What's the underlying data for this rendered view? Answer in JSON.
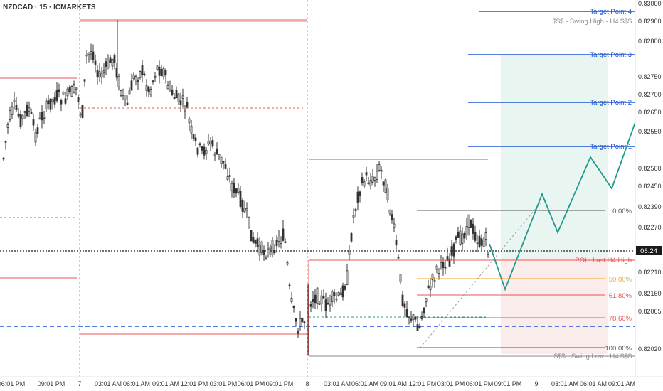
{
  "header": {
    "symbol_label": "NZDCAD · 15 · ICMARKETS"
  },
  "colors": {
    "up": "#22252b",
    "down": "#22252b",
    "blue": "#1e54d6",
    "red": "#e45555",
    "orange": "#f5a030",
    "teal": "#1f9a8c",
    "gray": "#8a8a8a",
    "dark": "#333333",
    "last_price_bg": "#1b1b1b",
    "green_zone": "#e9f5f1",
    "red_zone": "#fbecec"
  },
  "chart_data": {
    "type": "candlestick",
    "symbol": "NZDCAD",
    "timeframe": "15",
    "broker": "ICMARKETS",
    "ylim": [
      0.82,
      0.83
    ],
    "grid": true,
    "last_price_time": "06:24",
    "y_ticks": [
      "0.83000",
      "0.82900",
      "0.82800",
      "0.82750",
      "0.82700",
      "0.82650",
      "0.82550",
      "0.82500",
      "0.82450",
      "0.82390",
      "0.82270",
      "0.82210",
      "0.82160",
      "0.82065",
      "0.82020"
    ],
    "x_ticks": [
      "06:01 PM",
      "09:01 PM",
      "7",
      "03:01 AM",
      "06:01 AM",
      "09:01 AM",
      "12:01 PM",
      "03:01 PM",
      "06:01 PM",
      "09:01 PM",
      "8",
      "03:01 AM",
      "06:01 AM",
      "09:01 AM",
      "12:01 PM",
      "03:01 PM",
      "06:01 PM",
      "09:01 PM",
      "9",
      "03:01 AM",
      "06:01 AM",
      "09:01 AM"
    ],
    "price_levels": [
      {
        "label": "Target Point 4",
        "value": "0.82980",
        "color": "#1e54d6"
      },
      {
        "label": "$$$ - Swing High - H4 $$$",
        "value": "0.82952",
        "color": "#8a8a8a"
      },
      {
        "label": "Target Point 3",
        "value": "0.82860",
        "color": "#1e54d6"
      },
      {
        "label": "Target Point 2",
        "value": "0.82730",
        "color": "#1e54d6"
      },
      {
        "label": "Target Point 1",
        "value": "0.82610",
        "color": "#1e54d6"
      },
      {
        "label": "POI - Last H4 High",
        "value": "0.82305",
        "color": "#e45555"
      },
      {
        "label": "",
        "value": "0.82120",
        "color": "#1e54d6"
      },
      {
        "label": "$$$ - Swing Low - H4 $$$",
        "value": "0.82040",
        "color": "#8a8a8a"
      }
    ],
    "fib_levels": [
      {
        "label": "0.00%",
        "value": 0.8244
      },
      {
        "label": "50.00%",
        "value": 0.82254
      },
      {
        "label": "61.80%",
        "value": 0.8221
      },
      {
        "label": "78.60%",
        "value": 0.82148
      },
      {
        "label": "100.00%",
        "value": 0.82068
      }
    ],
    "projection_path": [
      {
        "t": 0,
        "price": 0.82325
      },
      {
        "t": 1,
        "price": 0.8222
      },
      {
        "t": 2,
        "price": 0.8248
      },
      {
        "t": 3,
        "price": 0.8237
      },
      {
        "t": 4,
        "price": 0.8259
      },
      {
        "t": 5,
        "price": 0.825
      },
      {
        "t": 6,
        "price": 0.8268
      }
    ],
    "candles": []
  }
}
